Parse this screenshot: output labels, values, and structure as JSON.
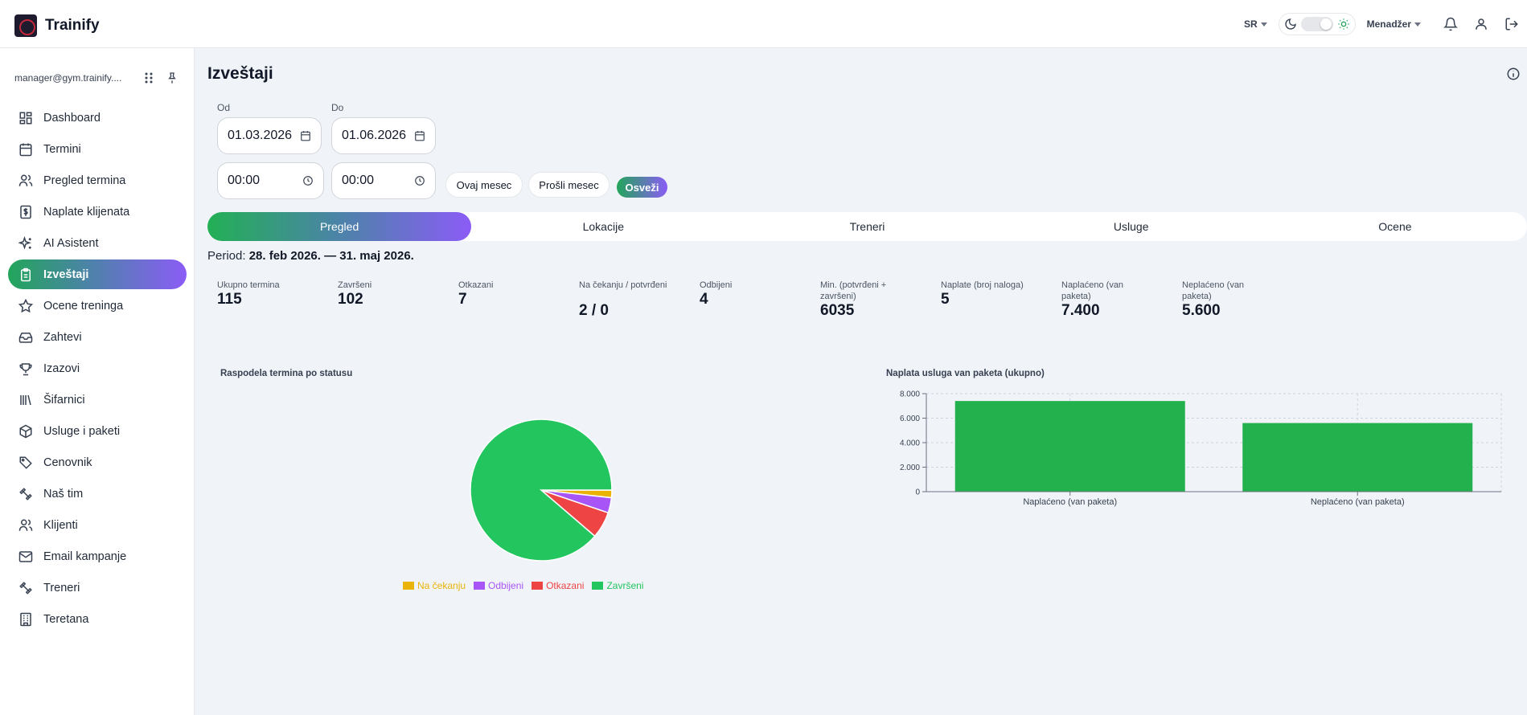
{
  "app": {
    "brand": "Trainify"
  },
  "topbar": {
    "language": "SR",
    "role": "Menadžer"
  },
  "sidebar": {
    "user_email": "manager@gym.trainify....",
    "items": [
      {
        "label": "Dashboard",
        "icon": "dashboard-icon"
      },
      {
        "label": "Termini",
        "icon": "calendar-icon"
      },
      {
        "label": "Pregled termina",
        "icon": "users-icon"
      },
      {
        "label": "Naplate klijenata",
        "icon": "dollar-icon"
      },
      {
        "label": "AI Asistent",
        "icon": "sparkles-icon"
      },
      {
        "label": "Izveštaji",
        "icon": "clipboard-icon",
        "active": true
      },
      {
        "label": "Ocene treninga",
        "icon": "star-icon"
      },
      {
        "label": "Zahtevi",
        "icon": "inbox-icon"
      },
      {
        "label": "Izazovi",
        "icon": "trophy-icon"
      },
      {
        "label": "Šifarnici",
        "icon": "library-icon"
      },
      {
        "label": "Usluge i paketi",
        "icon": "package-icon"
      },
      {
        "label": "Cenovnik",
        "icon": "tag-icon"
      },
      {
        "label": "Naš tim",
        "icon": "dumbbell-icon"
      },
      {
        "label": "Klijenti",
        "icon": "users-icon"
      },
      {
        "label": "Email kampanje",
        "icon": "mail-icon"
      },
      {
        "label": "Treneri",
        "icon": "dumbbell-icon"
      },
      {
        "label": "Teretana",
        "icon": "building-icon"
      }
    ]
  },
  "page": {
    "title": "Izveštaji",
    "filters": {
      "from_label": "Od",
      "to_label": "Do",
      "from_date": "01.03.2026",
      "to_date": "01.06.2026",
      "from_time": "00:00",
      "to_time": "00:00",
      "this_month": "Ovaj mesec",
      "last_month": "Prošli mesec",
      "refresh": "Osveži"
    },
    "tabs": [
      "Pregled",
      "Lokacije",
      "Treneri",
      "Usluge",
      "Ocene"
    ],
    "period_prefix": "Period:",
    "period_value": "28. feb 2026. — 31. maj 2026.",
    "stats": [
      {
        "label": "Ukupno termina",
        "value": "115"
      },
      {
        "label": "Završeni",
        "value": "102"
      },
      {
        "label": "Otkazani",
        "value": "7"
      },
      {
        "label": "Na čekanju / potvrđeni",
        "value": "2 / 0"
      },
      {
        "label": "Odbijeni",
        "value": "4"
      },
      {
        "label": "Min. (potvrđeni + završeni)",
        "value": "6035"
      },
      {
        "label": "Naplate (broj naloga)",
        "value": "5"
      },
      {
        "label": "Naplaćeno (van paketa)",
        "value": "7.400"
      },
      {
        "label": "Neplaćeno (van paketa)",
        "value": "5.600"
      }
    ],
    "pie_title": "Raspodela termina po statusu",
    "bar_title": "Naplata usluga van paketa (ukupno)"
  },
  "chart_data": [
    {
      "type": "pie",
      "title": "Raspodela termina po statusu",
      "legend_position": "bottom",
      "slices": [
        {
          "name": "Na čekanju",
          "value": 2,
          "color": "#eab308"
        },
        {
          "name": "Odbijeni",
          "value": 4,
          "color": "#a855f7"
        },
        {
          "name": "Otkazani",
          "value": 7,
          "color": "#ef4444"
        },
        {
          "name": "Završeni",
          "value": 102,
          "color": "#22c55e"
        }
      ]
    },
    {
      "type": "bar",
      "title": "Naplata usluga van paketa (ukupno)",
      "categories": [
        "Naplaćeno (van paketa)",
        "Neplaćeno (van paketa)"
      ],
      "values": [
        7400,
        5600
      ],
      "ylim": [
        0,
        8000
      ],
      "yticks": [
        "0",
        "2.000",
        "4.000",
        "6.000",
        "8.000"
      ],
      "grid": true,
      "color": "#22b14c"
    }
  ],
  "colors": {
    "accent_green": "#22c55e",
    "accent_purple": "#8b5cf6"
  }
}
